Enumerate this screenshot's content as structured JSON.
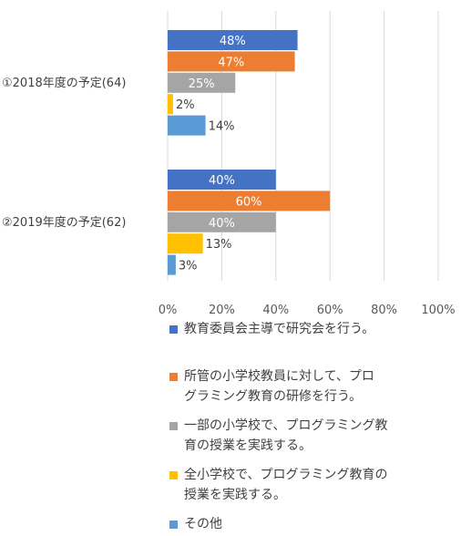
{
  "chart_data": {
    "type": "bar",
    "orientation": "horizontal",
    "categories": [
      "①2018年度の予定(64)",
      "②2019年度の予定(62)"
    ],
    "series": [
      {
        "name": "教育委員会主導で研究会を行う。",
        "color": "#4472C4",
        "values": [
          48,
          40
        ]
      },
      {
        "name": "所管の小学校教員に対して、プログラミング教育の研修を行う。",
        "color": "#ED7D31",
        "values": [
          47,
          60
        ]
      },
      {
        "name": "一部の小学校で、プログラミング教育の授業を実践する。",
        "color": "#A5A5A5",
        "values": [
          25,
          40
        ]
      },
      {
        "name": "全小学校で、プログラミング教育の授業を実践する。",
        "color": "#FFC000",
        "values": [
          2,
          13
        ]
      },
      {
        "name": "その他",
        "color": "#5B9BD5",
        "values": [
          14,
          3
        ]
      }
    ],
    "data_labels": [
      [
        "48%",
        "47%",
        "25%",
        "2%",
        "14%"
      ],
      [
        "40%",
        "60%",
        "40%",
        "13%",
        "3%"
      ]
    ],
    "xlim": [
      0,
      100
    ],
    "xticks": [
      "0%",
      "20%",
      "40%",
      "60%",
      "80%",
      "100%"
    ],
    "grid": "vertical",
    "legend_position": "bottom"
  },
  "legend_lines": [
    [
      "教育委員会主導で研究会を行う。"
    ],
    [
      "所管の小学校教員に対して、プロ",
      "グラミング教育の研修を行う。"
    ],
    [
      "一部の小学校で、プログラミング教",
      "育の授業を実践する。"
    ],
    [
      "全小学校で、プログラミング教育の",
      "授業を実践する。"
    ],
    [
      "その他"
    ]
  ]
}
